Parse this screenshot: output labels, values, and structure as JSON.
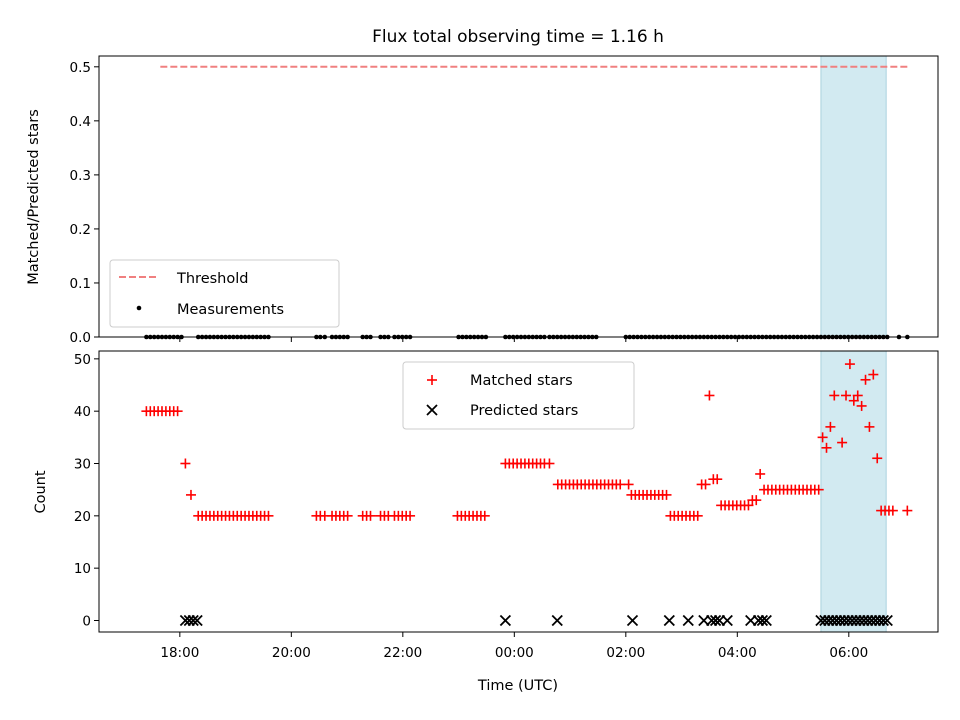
{
  "chart_data": [
    {
      "type": "scatter",
      "title": "Flux total observing time = 1.16 h",
      "ylabel": "Matched/Predicted stars",
      "ylim": [
        0,
        0.52
      ],
      "yticks": [
        0.0,
        0.1,
        0.2,
        0.3,
        0.4,
        0.5
      ],
      "tick_labels_y": [
        "0.0",
        "0.1",
        "0.2",
        "0.3",
        "0.4",
        "0.5"
      ],
      "xlim": [
        16.55,
        31.6
      ],
      "threshold": {
        "name": "Threshold",
        "y": 0.5,
        "x_range": [
          17.65,
          31.05
        ],
        "color": "#f08080",
        "style": "dashed"
      },
      "highlight_span": {
        "x_range": [
          29.5,
          30.67
        ],
        "color": "#add8e6"
      },
      "legend": {
        "placement": "lower-left",
        "entries": [
          "Threshold",
          "Measurements"
        ]
      },
      "series": [
        {
          "name": "Measurements",
          "color": "#000000",
          "marker": "dot",
          "y": 0,
          "x": [
            17.4,
            17.47,
            17.54,
            17.61,
            17.68,
            17.75,
            17.82,
            17.89,
            17.96,
            18.03,
            18.33,
            18.4,
            18.47,
            18.54,
            18.61,
            18.68,
            18.75,
            18.82,
            18.89,
            18.96,
            19.03,
            19.1,
            19.17,
            19.24,
            19.31,
            19.38,
            19.45,
            19.52,
            19.59,
            20.45,
            20.52,
            20.6,
            20.73,
            20.8,
            20.87,
            20.94,
            21.01,
            21.28,
            21.35,
            21.42,
            21.6,
            21.67,
            21.74,
            21.85,
            21.92,
            21.99,
            22.06,
            22.13,
            23.0,
            23.07,
            23.14,
            23.21,
            23.28,
            23.35,
            23.42,
            23.49,
            23.84,
            23.91,
            23.98,
            24.05,
            24.12,
            24.19,
            24.26,
            24.33,
            24.4,
            24.47,
            24.54,
            24.63,
            24.7,
            24.77,
            24.84,
            24.91,
            24.98,
            25.05,
            25.12,
            25.19,
            25.26,
            25.33,
            25.4,
            25.47,
            26.0,
            26.07,
            26.14,
            26.21,
            26.28,
            26.35,
            26.42,
            26.49,
            26.56,
            26.63,
            26.7,
            26.77,
            26.84,
            26.91,
            26.98,
            27.05,
            27.12,
            27.19,
            27.26,
            27.33,
            27.4,
            27.47,
            27.54,
            27.61,
            27.68,
            27.75,
            27.82,
            27.89,
            27.96,
            28.03,
            28.1,
            28.17,
            28.24,
            28.31,
            28.38,
            28.45,
            28.52,
            28.59,
            28.66,
            28.73,
            28.8,
            28.87,
            28.94,
            29.01,
            29.08,
            29.15,
            29.22,
            29.29,
            29.36,
            29.43,
            29.5,
            29.57,
            29.64,
            29.71,
            29.78,
            29.85,
            29.92,
            29.99,
            30.06,
            30.13,
            30.2,
            30.27,
            30.34,
            30.41,
            30.48,
            30.55,
            30.62,
            30.69,
            30.9,
            31.05
          ]
        }
      ]
    },
    {
      "type": "scatter",
      "xlabel": "Time (UTC)",
      "ylabel": "Count",
      "ylim": [
        -2.2,
        51.5
      ],
      "yticks": [
        0,
        10,
        20,
        30,
        40,
        50
      ],
      "tick_labels_y": [
        "0",
        "10",
        "20",
        "30",
        "40",
        "50"
      ],
      "xlim": [
        16.55,
        31.6
      ],
      "xticks": [
        18,
        20,
        22,
        24,
        26,
        28,
        30
      ],
      "tick_labels_x": [
        "18:00",
        "20:00",
        "22:00",
        "00:00",
        "02:00",
        "04:00",
        "06:00"
      ],
      "highlight_span": {
        "x_range": [
          29.5,
          30.67
        ],
        "color": "#add8e6"
      },
      "legend": {
        "placement": "upper-center",
        "entries": [
          "Matched stars",
          "Predicted stars"
        ]
      },
      "series": [
        {
          "name": "Matched stars",
          "color": "#ff0000",
          "marker": "plus",
          "points": [
            [
              17.4,
              40
            ],
            [
              17.47,
              40
            ],
            [
              17.54,
              40
            ],
            [
              17.61,
              40
            ],
            [
              17.68,
              40
            ],
            [
              17.75,
              40
            ],
            [
              17.82,
              40
            ],
            [
              17.89,
              40
            ],
            [
              17.96,
              40
            ],
            [
              18.1,
              30
            ],
            [
              18.2,
              24
            ],
            [
              18.33,
              20
            ],
            [
              18.4,
              20
            ],
            [
              18.47,
              20
            ],
            [
              18.54,
              20
            ],
            [
              18.61,
              20
            ],
            [
              18.68,
              20
            ],
            [
              18.75,
              20
            ],
            [
              18.82,
              20
            ],
            [
              18.89,
              20
            ],
            [
              18.96,
              20
            ],
            [
              19.03,
              20
            ],
            [
              19.1,
              20
            ],
            [
              19.17,
              20
            ],
            [
              19.24,
              20
            ],
            [
              19.31,
              20
            ],
            [
              19.38,
              20
            ],
            [
              19.45,
              20
            ],
            [
              19.52,
              20
            ],
            [
              19.59,
              20
            ],
            [
              20.45,
              20
            ],
            [
              20.52,
              20
            ],
            [
              20.6,
              20
            ],
            [
              20.73,
              20
            ],
            [
              20.8,
              20
            ],
            [
              20.87,
              20
            ],
            [
              20.94,
              20
            ],
            [
              21.01,
              20
            ],
            [
              21.28,
              20
            ],
            [
              21.35,
              20
            ],
            [
              21.42,
              20
            ],
            [
              21.6,
              20
            ],
            [
              21.67,
              20
            ],
            [
              21.74,
              20
            ],
            [
              21.85,
              20
            ],
            [
              21.92,
              20
            ],
            [
              21.99,
              20
            ],
            [
              22.06,
              20
            ],
            [
              22.13,
              20
            ],
            [
              22.98,
              20
            ],
            [
              23.05,
              20
            ],
            [
              23.12,
              20
            ],
            [
              23.19,
              20
            ],
            [
              23.26,
              20
            ],
            [
              23.33,
              20
            ],
            [
              23.4,
              20
            ],
            [
              23.47,
              20
            ],
            [
              23.84,
              30
            ],
            [
              23.91,
              30
            ],
            [
              23.98,
              30
            ],
            [
              24.05,
              30
            ],
            [
              24.12,
              30
            ],
            [
              24.19,
              30
            ],
            [
              24.26,
              30
            ],
            [
              24.33,
              30
            ],
            [
              24.4,
              30
            ],
            [
              24.47,
              30
            ],
            [
              24.54,
              30
            ],
            [
              24.63,
              30
            ],
            [
              24.78,
              26
            ],
            [
              24.85,
              26
            ],
            [
              24.92,
              26
            ],
            [
              24.99,
              26
            ],
            [
              25.06,
              26
            ],
            [
              25.13,
              26
            ],
            [
              25.2,
              26
            ],
            [
              25.27,
              26
            ],
            [
              25.34,
              26
            ],
            [
              25.41,
              26
            ],
            [
              25.48,
              26
            ],
            [
              25.55,
              26
            ],
            [
              25.62,
              26
            ],
            [
              25.69,
              26
            ],
            [
              25.76,
              26
            ],
            [
              25.83,
              26
            ],
            [
              25.9,
              26
            ],
            [
              26.05,
              26
            ],
            [
              26.1,
              24
            ],
            [
              26.17,
              24
            ],
            [
              26.24,
              24
            ],
            [
              26.31,
              24
            ],
            [
              26.38,
              24
            ],
            [
              26.45,
              24
            ],
            [
              26.52,
              24
            ],
            [
              26.59,
              24
            ],
            [
              26.66,
              24
            ],
            [
              26.73,
              24
            ],
            [
              26.8,
              20
            ],
            [
              26.87,
              20
            ],
            [
              26.94,
              20
            ],
            [
              27.01,
              20
            ],
            [
              27.08,
              20
            ],
            [
              27.15,
              20
            ],
            [
              27.22,
              20
            ],
            [
              27.29,
              20
            ],
            [
              27.36,
              26
            ],
            [
              27.43,
              26
            ],
            [
              27.5,
              43
            ],
            [
              27.57,
              27
            ],
            [
              27.64,
              27
            ],
            [
              27.71,
              22
            ],
            [
              27.78,
              22
            ],
            [
              27.85,
              22
            ],
            [
              27.92,
              22
            ],
            [
              27.99,
              22
            ],
            [
              28.06,
              22
            ],
            [
              28.13,
              22
            ],
            [
              28.2,
              22
            ],
            [
              28.27,
              23
            ],
            [
              28.34,
              23
            ],
            [
              28.41,
              28
            ],
            [
              28.48,
              25
            ],
            [
              28.55,
              25
            ],
            [
              28.62,
              25
            ],
            [
              28.69,
              25
            ],
            [
              28.76,
              25
            ],
            [
              28.83,
              25
            ],
            [
              28.9,
              25
            ],
            [
              28.97,
              25
            ],
            [
              29.04,
              25
            ],
            [
              29.11,
              25
            ],
            [
              29.18,
              25
            ],
            [
              29.25,
              25
            ],
            [
              29.32,
              25
            ],
            [
              29.39,
              25
            ],
            [
              29.46,
              25
            ],
            [
              29.53,
              35
            ],
            [
              29.6,
              33
            ],
            [
              29.67,
              37
            ],
            [
              29.74,
              43
            ],
            [
              29.88,
              34
            ],
            [
              29.95,
              43
            ],
            [
              30.02,
              49
            ],
            [
              30.09,
              42
            ],
            [
              30.16,
              43
            ],
            [
              30.23,
              41
            ],
            [
              30.3,
              46
            ],
            [
              30.37,
              37
            ],
            [
              30.44,
              47
            ],
            [
              30.51,
              31
            ],
            [
              30.58,
              21
            ],
            [
              30.65,
              21
            ],
            [
              30.72,
              21
            ],
            [
              30.79,
              21
            ],
            [
              31.05,
              21
            ]
          ]
        },
        {
          "name": "Predicted stars",
          "color": "#000000",
          "marker": "x",
          "y": 0,
          "x": [
            18.1,
            18.17,
            18.24,
            18.31,
            23.84,
            24.77,
            26.12,
            26.78,
            27.12,
            27.4,
            27.54,
            27.61,
            27.68,
            27.82,
            28.24,
            28.38,
            28.45,
            28.52,
            29.5,
            29.57,
            29.64,
            29.71,
            29.78,
            29.85,
            29.92,
            29.99,
            30.06,
            30.13,
            30.2,
            30.27,
            30.34,
            30.41,
            30.48,
            30.55,
            30.62,
            30.69
          ]
        }
      ]
    }
  ]
}
